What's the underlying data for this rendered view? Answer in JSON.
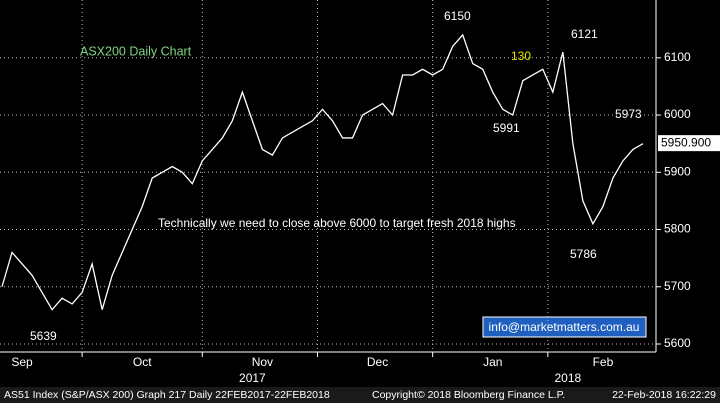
{
  "chart_data": {
    "type": "line",
    "title": "ASX200 Daily Chart",
    "annotations": [
      "6150",
      "6121",
      "130",
      "5991",
      "5973",
      "5786",
      "5639",
      "Technically we need to close above 6000 to target fresh 2018 highs"
    ],
    "contact": "info@marketmatters.com.au",
    "last_price": {
      "value": 5950.9,
      "label": "5950.900"
    },
    "footer": [
      "AS51 Index (S&P/ASX 200) Graph 217  Daily 22FEB2017-22FEB2018",
      "Copyright© 2018 Bloomberg Finance L.P.",
      "22-Feb-2018 16:22:29"
    ],
    "years": [
      {
        "value": 50,
        "label": "2017"
      },
      {
        "value": 113,
        "label": "2018"
      }
    ],
    "x": [
      0,
      2,
      4,
      6,
      8,
      10,
      12,
      14,
      16,
      18,
      20,
      22,
      24,
      26,
      28,
      30,
      32,
      34,
      36,
      38,
      40,
      42,
      44,
      46,
      48,
      50,
      52,
      54,
      56,
      58,
      60,
      62,
      64,
      66,
      68,
      70,
      72,
      74,
      76,
      78,
      80,
      82,
      84,
      86,
      88,
      90,
      92,
      94,
      96,
      98,
      100,
      102,
      104,
      106,
      108,
      110,
      112,
      114,
      116,
      118,
      120,
      122,
      124,
      126,
      128
    ],
    "series": [
      {
        "name": "AS51 Index",
        "color": "#ffffff",
        "values": [
          5700,
          5760,
          5740,
          5720,
          5690,
          5660,
          5680,
          5670,
          5690,
          5740,
          5660,
          5720,
          5760,
          5800,
          5840,
          5890,
          5900,
          5910,
          5900,
          5880,
          5920,
          5940,
          5960,
          5990,
          6040,
          5990,
          5940,
          5930,
          5960,
          5970,
          5980,
          5990,
          6010,
          5990,
          5960,
          5960,
          6000,
          6010,
          6020,
          6000,
          6070,
          6070,
          6080,
          6070,
          6080,
          6120,
          6140,
          6090,
          6080,
          6040,
          6010,
          6000,
          6060,
          6070,
          6080,
          6040,
          6110,
          5950,
          5850,
          5810,
          5840,
          5890,
          5920,
          5940,
          5950
        ]
      }
    ],
    "xlim": [
      -0.4,
      130.6
    ],
    "xticks": [
      {
        "value": 4,
        "label": "Sep"
      },
      {
        "value": 28,
        "label": "Oct"
      },
      {
        "value": 52,
        "label": "Nov"
      },
      {
        "value": 75,
        "label": "Dec"
      },
      {
        "value": 98,
        "label": "Jan"
      },
      {
        "value": 120,
        "label": "Feb"
      }
    ],
    "xgrid": [
      16,
      40,
      63,
      86,
      109
    ],
    "ylim": [
      5586,
      6201
    ],
    "yticks": [
      5600,
      5700,
      5800,
      5900,
      6000,
      6100
    ],
    "grid": true
  }
}
